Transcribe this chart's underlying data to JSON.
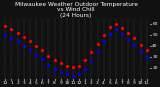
{
  "title": "Milwaukee Weather Outdoor Temperature\nvs Wind Chill\n(24 Hours)",
  "title_fontsize": 4.2,
  "bg_color": "#111111",
  "plot_bg_color": "#111111",
  "grid_color": "#888888",
  "text_color": "#ffffff",
  "red_color": "#ff0000",
  "blue_color": "#0000ff",
  "black_color": "#000000",
  "hours": [
    0,
    1,
    2,
    3,
    4,
    5,
    6,
    7,
    8,
    9,
    10,
    11,
    12,
    13,
    14,
    15,
    16,
    17,
    18,
    19,
    20,
    21,
    22,
    23
  ],
  "temp": [
    58,
    55,
    52,
    48,
    44,
    40,
    36,
    31,
    27,
    24,
    22,
    21,
    22,
    27,
    34,
    42,
    50,
    57,
    60,
    56,
    52,
    47,
    41,
    36
  ],
  "windchill": [
    50,
    47,
    44,
    40,
    36,
    32,
    28,
    23,
    19,
    16,
    14,
    13,
    14,
    19,
    26,
    35,
    44,
    51,
    55,
    51,
    46,
    41,
    35,
    30
  ],
  "ylim_min": 10,
  "ylim_max": 65,
  "yticks": [
    20,
    30,
    40,
    50,
    60
  ],
  "ytick_labels": [
    "20",
    "30",
    "40",
    "50",
    "60"
  ],
  "tick_fontsize": 3.2,
  "marker_size": 1.3,
  "xtick_labels": [
    "12",
    "1",
    "2",
    "3",
    "4",
    "5",
    "6",
    "7",
    "8",
    "9",
    "10",
    "11",
    "12",
    "1",
    "2",
    "3",
    "4",
    "5",
    "6",
    "7",
    "8",
    "9",
    "10",
    "11"
  ],
  "grid_positions": [
    0,
    1,
    2,
    3,
    4,
    5,
    6,
    7,
    8,
    9,
    10,
    11,
    12,
    13,
    14,
    15,
    16,
    17,
    18,
    19,
    20,
    21,
    22,
    23
  ],
  "figsize": [
    1.6,
    0.87
  ],
  "dpi": 100
}
